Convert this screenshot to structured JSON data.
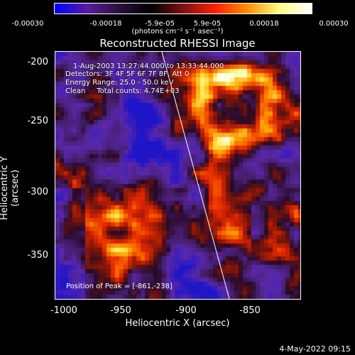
{
  "colorbar": {
    "ticks": [
      "-0.00030",
      "-0.00018",
      "-5.9e-05",
      "5.9e-05",
      "0.00018",
      "0.00030"
    ],
    "units": "(photons cm⁻² s⁻¹ asec⁻²)",
    "colors": [
      "#0000ff",
      "#5a1aa0",
      "#2a1040",
      "#000000",
      "#801010",
      "#ff2000",
      "#ff9000",
      "#ffff80",
      "#ffffff"
    ]
  },
  "title": "Reconstructed RHESSI Image",
  "info": {
    "time_range": "1-Aug-2003 13:27:44.000 to 13:33:44.000",
    "detectors": "Detectors: 3F 4F 5F 6F 7F 8F, Att 0",
    "energy": "Energy Range: 25.0 - 50.0 keV",
    "clean": "Clean     Total counts: 4.74E+03"
  },
  "peak_label": "Position of Peak = [-861,-238]",
  "axes": {
    "x_title": "Heliocentric X (arcsec)",
    "y_title": "Heliocentric Y (arcsec)",
    "x_ticks": [
      "-1000",
      "-950",
      "-900",
      "-850"
    ],
    "y_ticks": [
      "-200",
      "-250",
      "-300",
      "-350"
    ]
  },
  "datestamp": "4-May-2022 09:15"
}
